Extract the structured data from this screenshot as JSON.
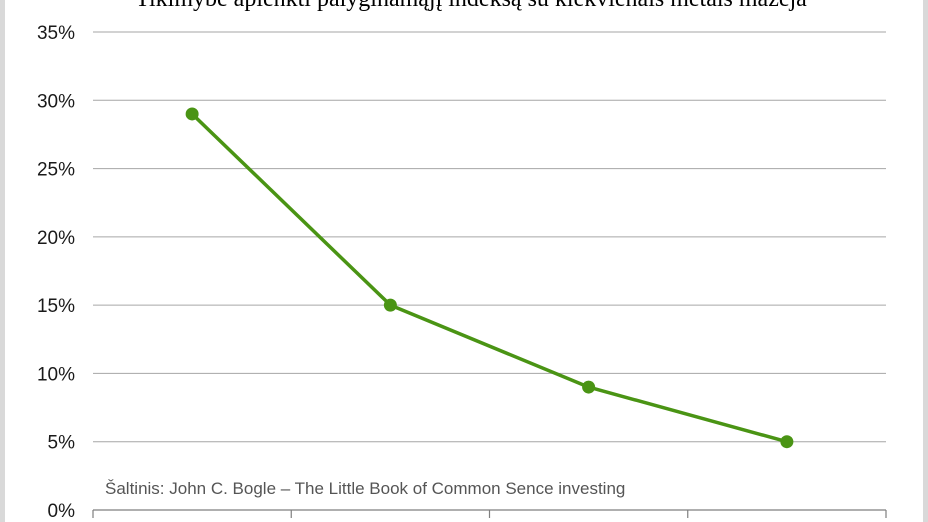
{
  "chart_data": {
    "type": "line",
    "title": "Tikimybė aplenkti palyginamąjį indeksą su kiekvienais metais mažėja",
    "xlabel": "",
    "ylabel": "",
    "y_tick_labels": [
      "0%",
      "5%",
      "10%",
      "15%",
      "20%",
      "25%",
      "30%",
      "35%"
    ],
    "ylim": [
      0,
      35
    ],
    "x": [
      1,
      2,
      3,
      4
    ],
    "series": [
      {
        "values": [
          29,
          15,
          9,
          5
        ],
        "color": "#4a9414"
      }
    ],
    "grid": true,
    "source_note": "Šaltinis: John C. Bogle – The Little Book of Common Sence investing"
  }
}
